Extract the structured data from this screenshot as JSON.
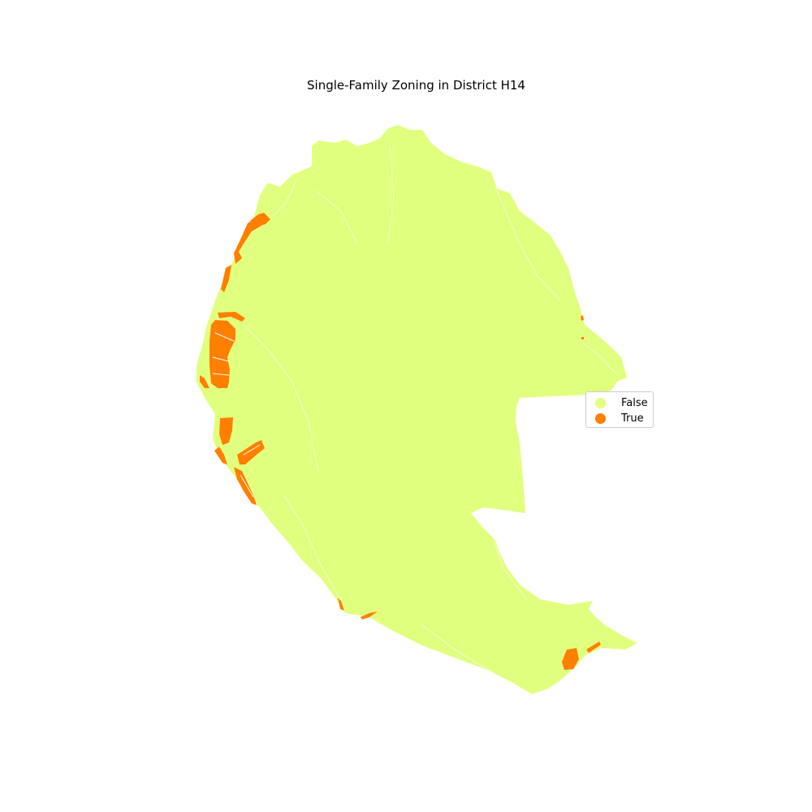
{
  "title": "Single-Family Zoning in District H14",
  "colors": {
    "false": "#e1ff7f",
    "true": "#ff7f00",
    "parcel_lines": "#ffffff"
  },
  "legend": {
    "placement": "right",
    "items": [
      {
        "label": "False",
        "color": "#e1ff7f",
        "icon": "circle-marker"
      },
      {
        "label": "True",
        "color": "#ff7f00",
        "icon": "circle-marker"
      }
    ]
  }
}
